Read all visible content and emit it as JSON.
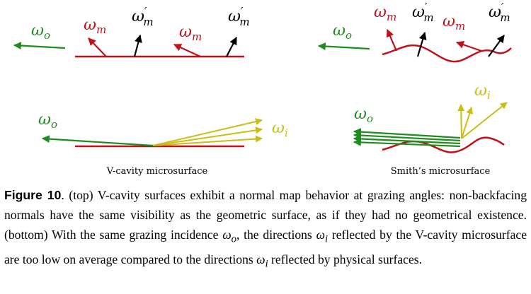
{
  "figure": {
    "colors": {
      "green": "#1e8c1e",
      "red": "#c0101a",
      "black": "#000000",
      "yellow": "#c8be14"
    },
    "symbols": {
      "omega": "ω",
      "sub_o": "o",
      "sub_m": "m",
      "sub_i": "i",
      "prime": "′"
    },
    "panel_labels": {
      "left": "V-cavity microsurface",
      "right": "Smith’s microsurface"
    }
  },
  "caption": {
    "label": "Figure 10",
    "sep": ".",
    "part1": " (top) V-cavity surfaces exhibit a normal map behavior at grazing angles: non-backfacing normals have the same visibility as the geometric surface, as if they had no geometrical existence. (bottom) With the same grazing incidence ",
    "omega_o": "ω",
    "sub_o": "o",
    "part2": ", the directions ",
    "omega_i1": "ω",
    "sub_i1": "i",
    "part3": " reflected by the V-cavity microsurface are too low on average compared to the directions ",
    "omega_i2": "ω",
    "sub_i2": "i",
    "part4": " reflected by physical surfaces."
  }
}
